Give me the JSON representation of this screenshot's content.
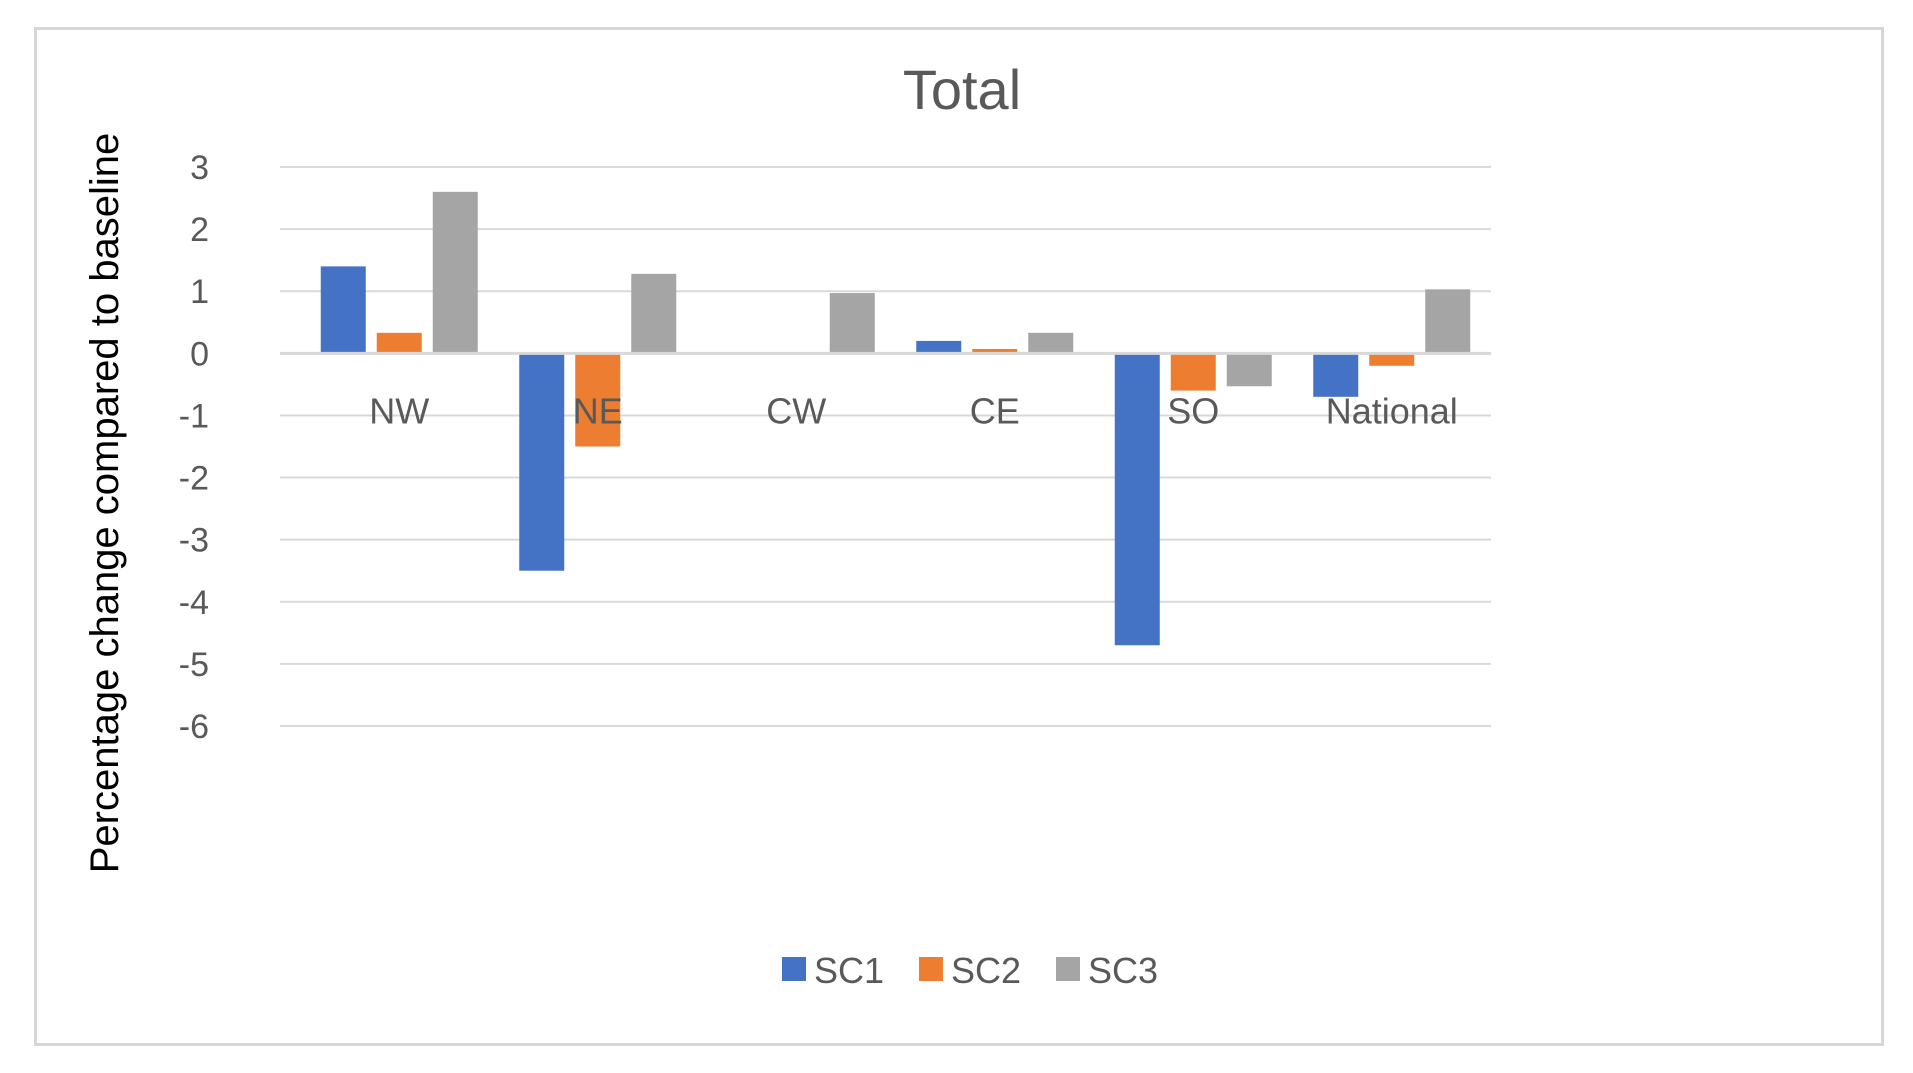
{
  "chart_data": {
    "type": "bar",
    "title": "Total",
    "xlabel": "",
    "ylabel": "Percentage change compared to baseline",
    "ylim": [
      -6,
      3
    ],
    "yticks": [
      3,
      2,
      1,
      0,
      -1,
      -2,
      -3,
      -4,
      -5,
      -6
    ],
    "grid": true,
    "legend_position": "bottom",
    "categories": [
      "NW",
      "NE",
      "CW",
      "CE",
      "SO",
      "National"
    ],
    "series": [
      {
        "name": "SC1",
        "color": "#4472C4",
        "values": [
          1.4,
          -3.5,
          0,
          0.2,
          -4.7,
          -0.7
        ]
      },
      {
        "name": "SC2",
        "color": "#ED7D31",
        "values": [
          0.33,
          -1.5,
          0,
          0.07,
          -0.6,
          -0.2
        ]
      },
      {
        "name": "SC3",
        "color": "#A5A5A5",
        "values": [
          2.6,
          1.28,
          0.97,
          0.33,
          -0.53,
          1.03
        ]
      }
    ]
  }
}
